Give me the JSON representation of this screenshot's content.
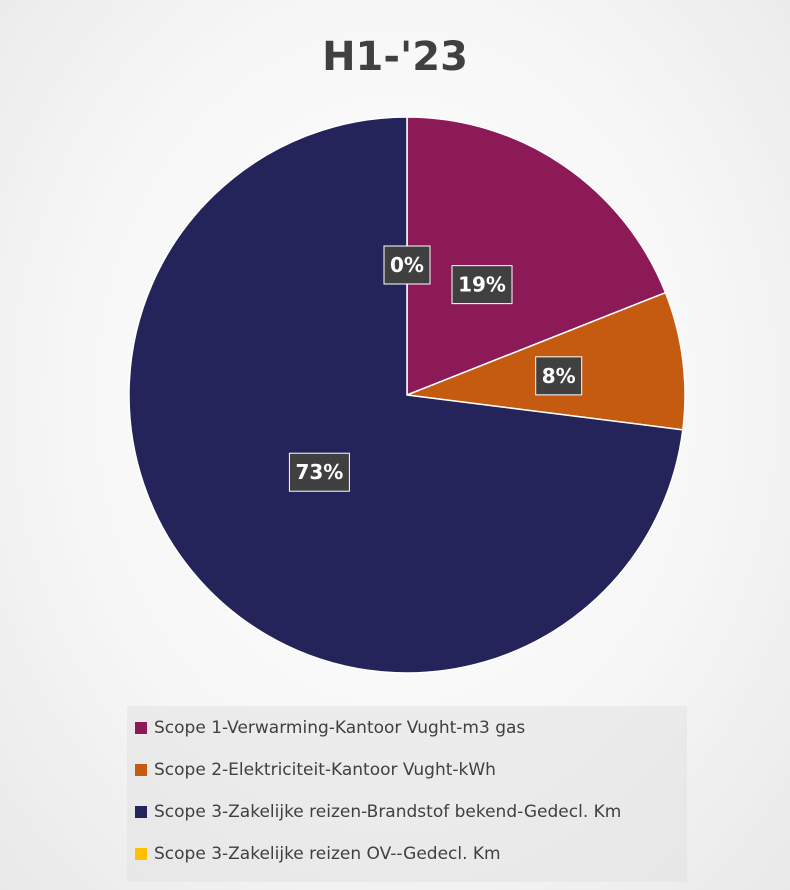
{
  "chart_data": {
    "type": "pie",
    "title": "H1-'23",
    "categories": [
      "Scope 1-Verwarming-Kantoor Vught-m3 gas",
      "Scope 2-Elektriciteit-Kantoor Vught-kWh",
      "Scope 3-Zakelijke reizen-Brandstof bekend-Gedecl. Km",
      "Scope 3-Zakelijke reizen OV--Gedecl. Km"
    ],
    "values": [
      19,
      8,
      73,
      0
    ],
    "data_labels": [
      "19%",
      "8%",
      "73%",
      "0%"
    ],
    "colors": [
      "#8B1A57",
      "#C55A11",
      "#24245A",
      "#FFC000"
    ],
    "start_angle_deg": 0,
    "direction": "clockwise",
    "legend": "bottom"
  }
}
